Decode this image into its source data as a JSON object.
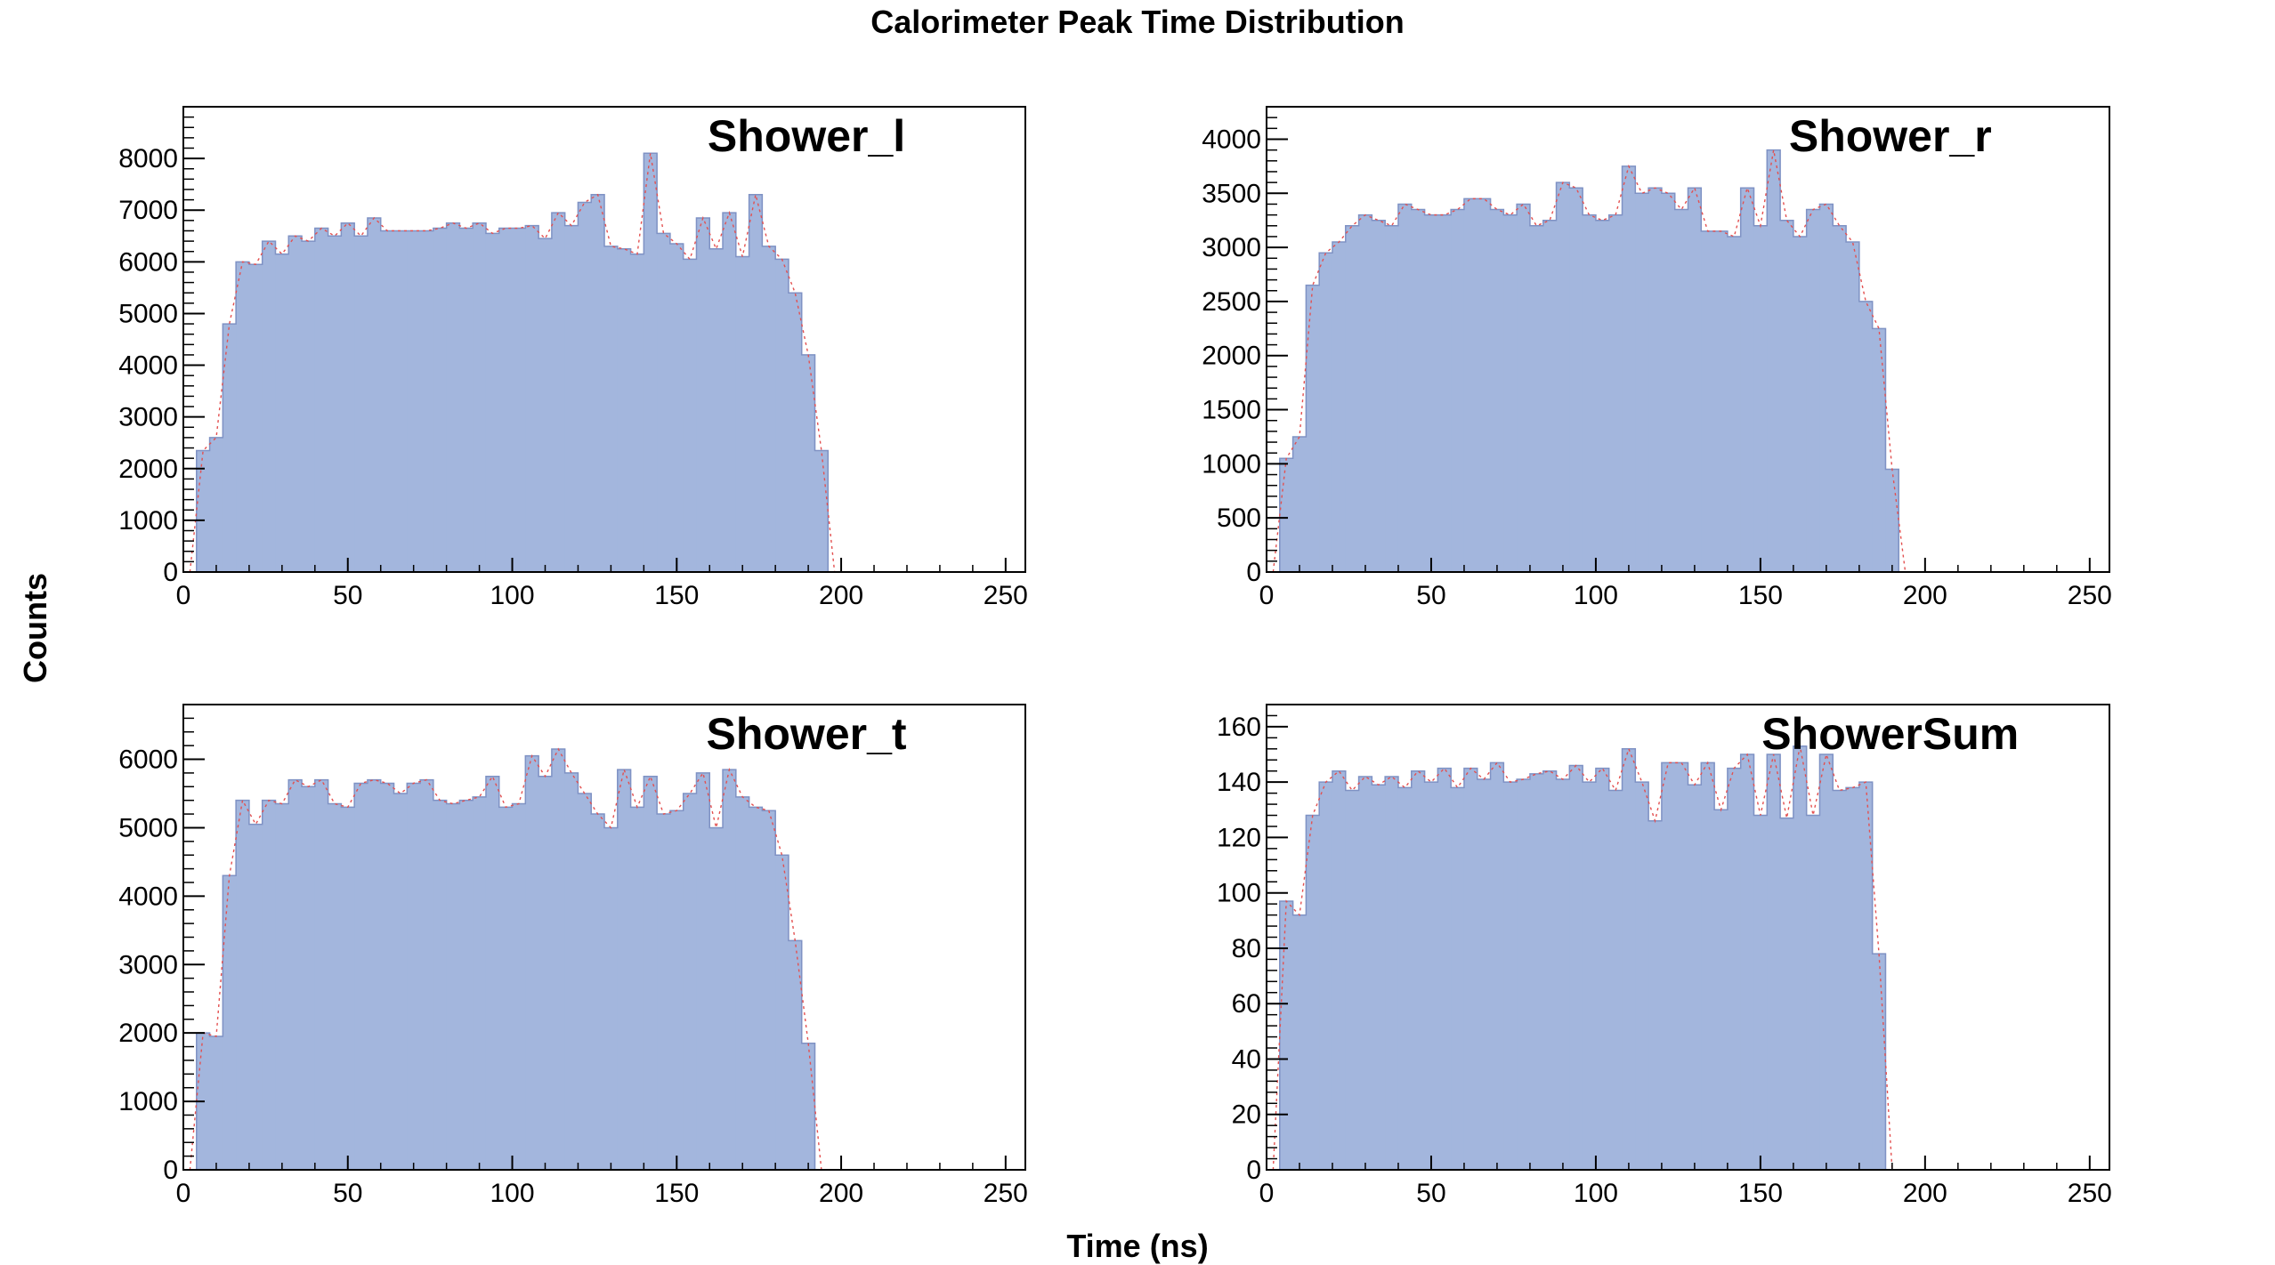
{
  "figure": {
    "title": "Calorimeter Peak Time Distribution",
    "xlabel": "Time (ns)",
    "ylabel": "Counts"
  },
  "colors": {
    "fill": "#a3b6dd",
    "outline": "#7f92c4",
    "fit_line": "#e35050",
    "axis": "#000000"
  },
  "chart_data": [
    {
      "type": "bar",
      "title": "Shower_l",
      "x_start": 0,
      "bin_width": 4,
      "xlim": [
        0,
        256
      ],
      "ylim": [
        0,
        9000
      ],
      "x_ticks": [
        0,
        50,
        100,
        150,
        200,
        250
      ],
      "x_tick_labels": [
        "0",
        "50",
        "100",
        "150",
        "200",
        "250"
      ],
      "y_ticks": [
        0,
        1000,
        2000,
        3000,
        4000,
        5000,
        6000,
        7000,
        8000
      ],
      "y_tick_labels": [
        "0",
        "1000",
        "2000",
        "3000",
        "4000",
        "5000",
        "6000",
        "7000",
        "8000"
      ],
      "values": [
        0,
        2350,
        2600,
        4800,
        6000,
        5950,
        6400,
        6150,
        6500,
        6400,
        6650,
        6500,
        6750,
        6500,
        6850,
        6600,
        6600,
        6600,
        6600,
        6650,
        6750,
        6650,
        6750,
        6550,
        6650,
        6650,
        6700,
        6450,
        6950,
        6700,
        7150,
        7300,
        6300,
        6250,
        6150,
        8100,
        6550,
        6350,
        6050,
        6850,
        6250,
        6950,
        6100,
        7300,
        6300,
        6050,
        5400,
        4200,
        2350,
        0,
        0,
        0,
        0,
        0,
        0,
        0,
        0,
        0,
        0,
        0,
        0,
        0,
        0,
        0
      ]
    },
    {
      "type": "bar",
      "title": "Shower_r",
      "x_start": 0,
      "bin_width": 4,
      "xlim": [
        0,
        256
      ],
      "ylim": [
        0,
        4300
      ],
      "x_ticks": [
        0,
        50,
        100,
        150,
        200,
        250
      ],
      "x_tick_labels": [
        "0",
        "50",
        "100",
        "150",
        "200",
        "250"
      ],
      "y_ticks": [
        0,
        500,
        1000,
        1500,
        2000,
        2500,
        3000,
        3500,
        4000
      ],
      "y_tick_labels": [
        "0",
        "500",
        "1000",
        "1500",
        "2000",
        "2500",
        "3000",
        "3500",
        "4000"
      ],
      "values": [
        0,
        1050,
        1250,
        2650,
        2950,
        3050,
        3200,
        3300,
        3250,
        3200,
        3400,
        3350,
        3300,
        3300,
        3350,
        3450,
        3450,
        3350,
        3300,
        3400,
        3200,
        3250,
        3600,
        3550,
        3300,
        3250,
        3300,
        3750,
        3500,
        3550,
        3500,
        3350,
        3550,
        3150,
        3150,
        3100,
        3550,
        3200,
        3900,
        3250,
        3100,
        3350,
        3400,
        3200,
        3050,
        2500,
        2250,
        950,
        0,
        0,
        0,
        0,
        0,
        0,
        0,
        0,
        0,
        0,
        0,
        0,
        0,
        0,
        0,
        0
      ]
    },
    {
      "type": "bar",
      "title": "Shower_t",
      "x_start": 0,
      "bin_width": 4,
      "xlim": [
        0,
        256
      ],
      "ylim": [
        0,
        6800
      ],
      "x_ticks": [
        0,
        50,
        100,
        150,
        200,
        250
      ],
      "x_tick_labels": [
        "0",
        "50",
        "100",
        "150",
        "200",
        "250"
      ],
      "y_ticks": [
        0,
        1000,
        2000,
        3000,
        4000,
        5000,
        6000
      ],
      "y_tick_labels": [
        "0",
        "1000",
        "2000",
        "3000",
        "4000",
        "5000",
        "6000"
      ],
      "values": [
        0,
        2000,
        1950,
        4300,
        5400,
        5050,
        5400,
        5350,
        5700,
        5600,
        5700,
        5350,
        5300,
        5650,
        5700,
        5650,
        5500,
        5650,
        5700,
        5400,
        5350,
        5400,
        5450,
        5750,
        5300,
        5350,
        6050,
        5750,
        6150,
        5800,
        5500,
        5200,
        5000,
        5850,
        5300,
        5750,
        5200,
        5250,
        5500,
        5800,
        5000,
        5850,
        5450,
        5300,
        5250,
        4600,
        3350,
        1850,
        0,
        0,
        0,
        0,
        0,
        0,
        0,
        0,
        0,
        0,
        0,
        0,
        0,
        0,
        0,
        0
      ]
    },
    {
      "type": "bar",
      "title": "ShowerSum",
      "x_start": 0,
      "bin_width": 4,
      "xlim": [
        0,
        256
      ],
      "ylim": [
        0,
        168
      ],
      "x_ticks": [
        0,
        50,
        100,
        150,
        200,
        250
      ],
      "x_tick_labels": [
        "0",
        "50",
        "100",
        "150",
        "200",
        "250"
      ],
      "y_ticks": [
        0,
        20,
        40,
        60,
        80,
        100,
        120,
        140,
        160
      ],
      "y_tick_labels": [
        "0",
        "20",
        "40",
        "60",
        "80",
        "100",
        "120",
        "140",
        "160"
      ],
      "values": [
        0,
        97,
        92,
        128,
        140,
        144,
        137,
        142,
        139,
        142,
        138,
        144,
        140,
        145,
        138,
        145,
        141,
        147,
        140,
        141,
        143,
        144,
        141,
        146,
        140,
        145,
        137,
        152,
        140,
        126,
        147,
        147,
        139,
        147,
        130,
        145,
        150,
        128,
        150,
        127,
        153,
        128,
        150,
        137,
        138,
        140,
        78,
        0,
        0,
        0,
        0,
        0,
        0,
        0,
        0,
        0,
        0,
        0,
        0,
        0,
        0,
        0,
        0,
        0
      ]
    }
  ]
}
